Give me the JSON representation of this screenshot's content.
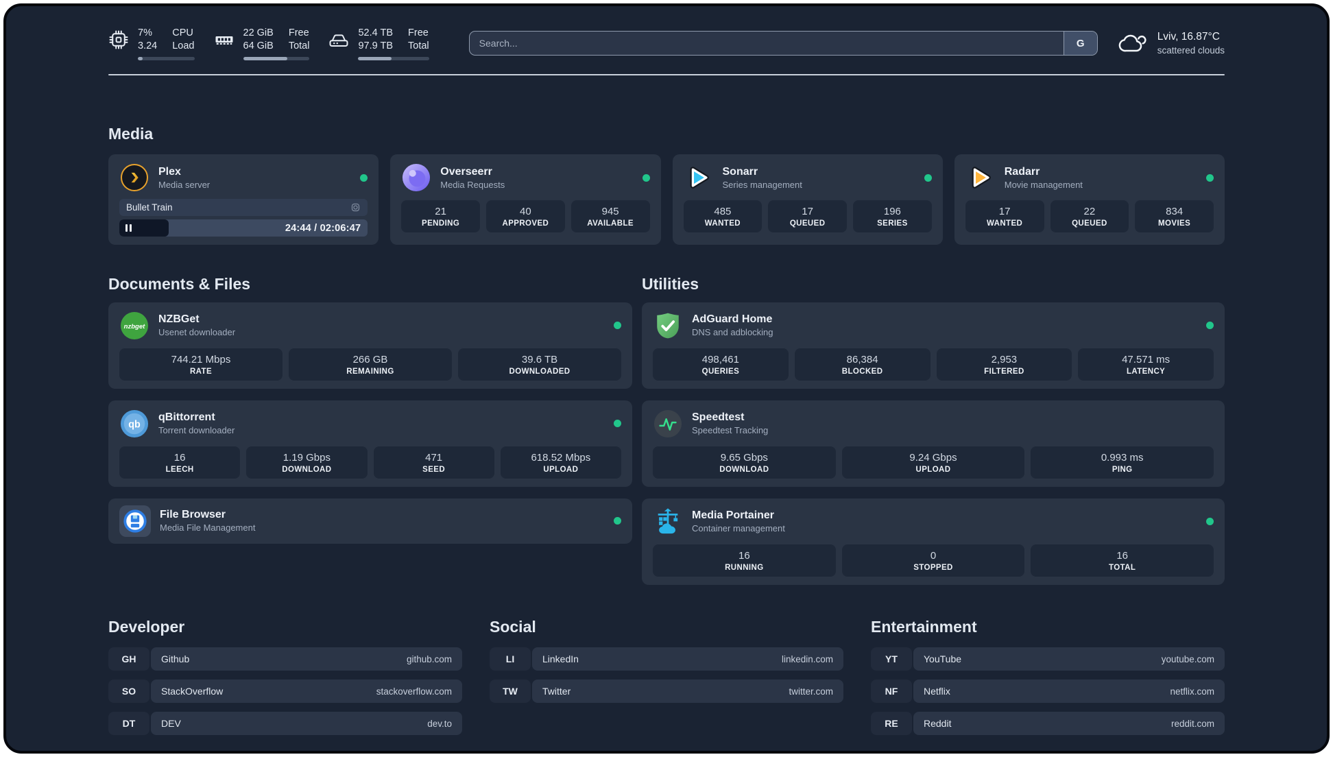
{
  "topbar": {
    "cpu": {
      "value_top": "7%",
      "value_bottom": "3.24",
      "label_top": "CPU",
      "label_bottom": "Load",
      "progress_percent": 8
    },
    "memory": {
      "value_top": "22 GiB",
      "value_bottom": "64 GiB",
      "label_top": "Free",
      "label_bottom": "Total",
      "progress_percent": 66
    },
    "storage": {
      "value_top": "52.4 TB",
      "value_bottom": "97.9 TB",
      "label_top": "Free",
      "label_bottom": "Total",
      "progress_percent": 47
    },
    "search": {
      "placeholder": "Search...",
      "engine_button": "G"
    },
    "weather": {
      "location": "Lviv, 16.87°C",
      "condition": "scattered clouds"
    }
  },
  "media": {
    "heading": "Media",
    "plex": {
      "title": "Plex",
      "subtitle": "Media server",
      "now_playing": "Bullet Train",
      "time": "24:44 / 02:06:47",
      "progress_percent": 20
    },
    "overseerr": {
      "title": "Overseerr",
      "subtitle": "Media Requests",
      "stats": [
        {
          "value": "21",
          "label": "PENDING"
        },
        {
          "value": "40",
          "label": "APPROVED"
        },
        {
          "value": "945",
          "label": "AVAILABLE"
        }
      ]
    },
    "sonarr": {
      "title": "Sonarr",
      "subtitle": "Series management",
      "stats": [
        {
          "value": "485",
          "label": "WANTED"
        },
        {
          "value": "17",
          "label": "QUEUED"
        },
        {
          "value": "196",
          "label": "SERIES"
        }
      ]
    },
    "radarr": {
      "title": "Radarr",
      "subtitle": "Movie management",
      "stats": [
        {
          "value": "17",
          "label": "WANTED"
        },
        {
          "value": "22",
          "label": "QUEUED"
        },
        {
          "value": "834",
          "label": "MOVIES"
        }
      ]
    }
  },
  "documents": {
    "heading": "Documents & Files",
    "nzbget": {
      "title": "NZBGet",
      "subtitle": "Usenet downloader",
      "icon_text": "nzbget",
      "stats": [
        {
          "value": "744.21 Mbps",
          "label": "RATE"
        },
        {
          "value": "266 GB",
          "label": "REMAINING"
        },
        {
          "value": "39.6 TB",
          "label": "DOWNLOADED"
        }
      ]
    },
    "qbittorrent": {
      "title": "qBittorrent",
      "subtitle": "Torrent downloader",
      "icon_text": "qb",
      "stats": [
        {
          "value": "16",
          "label": "LEECH"
        },
        {
          "value": "1.19 Gbps",
          "label": "DOWNLOAD"
        },
        {
          "value": "471",
          "label": "SEED"
        },
        {
          "value": "618.52 Mbps",
          "label": "UPLOAD"
        }
      ]
    },
    "filebrowser": {
      "title": "File Browser",
      "subtitle": "Media File Management"
    }
  },
  "utilities": {
    "heading": "Utilities",
    "adguard": {
      "title": "AdGuard Home",
      "subtitle": "DNS and adblocking",
      "stats": [
        {
          "value": "498,461",
          "label": "QUERIES"
        },
        {
          "value": "86,384",
          "label": "BLOCKED"
        },
        {
          "value": "2,953",
          "label": "FILTERED"
        },
        {
          "value": "47.571 ms",
          "label": "LATENCY"
        }
      ]
    },
    "speedtest": {
      "title": "Speedtest",
      "subtitle": "Speedtest Tracking",
      "stats": [
        {
          "value": "9.65 Gbps",
          "label": "DOWNLOAD"
        },
        {
          "value": "9.24 Gbps",
          "label": "UPLOAD"
        },
        {
          "value": "0.993 ms",
          "label": "PING"
        }
      ]
    },
    "portainer": {
      "title": "Media Portainer",
      "subtitle": "Container management",
      "stats": [
        {
          "value": "16",
          "label": "RUNNING"
        },
        {
          "value": "0",
          "label": "STOPPED"
        },
        {
          "value": "16",
          "label": "TOTAL"
        }
      ]
    }
  },
  "links": {
    "developer": {
      "heading": "Developer",
      "items": [
        {
          "abbr": "GH",
          "name": "Github",
          "url": "github.com"
        },
        {
          "abbr": "SO",
          "name": "StackOverflow",
          "url": "stackoverflow.com"
        },
        {
          "abbr": "DT",
          "name": "DEV",
          "url": "dev.to"
        }
      ]
    },
    "social": {
      "heading": "Social",
      "items": [
        {
          "abbr": "LI",
          "name": "LinkedIn",
          "url": "linkedin.com"
        },
        {
          "abbr": "TW",
          "name": "Twitter",
          "url": "twitter.com"
        }
      ]
    },
    "entertainment": {
      "heading": "Entertainment",
      "items": [
        {
          "abbr": "YT",
          "name": "YouTube",
          "url": "youtube.com"
        },
        {
          "abbr": "NF",
          "name": "Netflix",
          "url": "netflix.com"
        },
        {
          "abbr": "RE",
          "name": "Reddit",
          "url": "reddit.com"
        }
      ]
    }
  },
  "colors": {
    "status_online_green": "#21c68b",
    "plex_amber": "#e8a22c",
    "sonarr_cyan": "#34c3f2",
    "radarr_yellow": "#ffb53c",
    "overseerr_purple": "#6a5af0",
    "nzbget_green": "#3fa43f",
    "qbittorrent_blue": "#4e9ad9",
    "adguard_green": "#5fb86c",
    "speedtest_pulse_green": "#35df8d",
    "portainer_blue": "#2ab5ea",
    "filebrowser_blue": "#2e7ee4"
  }
}
